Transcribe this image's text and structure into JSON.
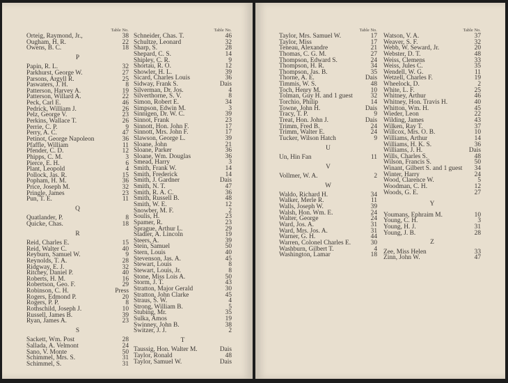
{
  "header_label": "Table No.",
  "columns": [
    {
      "show_header": true,
      "items": [
        {
          "name": "Orteig, Raymond, Jr.,",
          "table": "38"
        },
        {
          "name": "Ougham, H. R.",
          "table": "22"
        },
        {
          "name": "Owens, B. C.",
          "table": "18"
        },
        {
          "letter": "P"
        },
        {
          "name": "Papin, R. L.",
          "table": "32"
        },
        {
          "name": "Parkhurst, George W.",
          "table": "27"
        },
        {
          "name": "Parsons, Argyll R.",
          "table": "25"
        },
        {
          "name": "Paswaters, J. H.",
          "table": "8"
        },
        {
          "name": "Patterson, Harvey A.",
          "table": "19"
        },
        {
          "name": "Patterson, Willard A.",
          "table": "22"
        },
        {
          "name": "Peck, Carl E.",
          "table": "46"
        },
        {
          "name": "Pedrick, William J.",
          "table": "26"
        },
        {
          "name": "Pelz, George V.",
          "table": "23"
        },
        {
          "name": "Perkins, Wallace T.",
          "table": "26"
        },
        {
          "name": "Perrie, C. P.",
          "table": "9"
        },
        {
          "name": "Perry, A. C.",
          "table": "47"
        },
        {
          "name": "Petinot, George Napoleon",
          "table": "36"
        },
        {
          "name": "Pfaffle, William",
          "table": "11"
        },
        {
          "name": "Pfender, C. D.",
          "table": "12"
        },
        {
          "name": "Phipps, C. M.",
          "table": "3"
        },
        {
          "name": "Pierce, E. H.",
          "table": "6"
        },
        {
          "name": "Plant, Leopold",
          "table": "4"
        },
        {
          "name": "Pollock, Jas. R.",
          "table": "15"
        },
        {
          "name": "Popham, H. M.",
          "table": "36"
        },
        {
          "name": "Price, Joseph M.",
          "table": "32"
        },
        {
          "name": "Pringle, James",
          "table": "23"
        },
        {
          "name": "Pun, T. E.",
          "table": "11"
        },
        {
          "letter": "Q"
        },
        {
          "name": "Quatlander, P.",
          "table": "8"
        },
        {
          "name": "Quicke, Chas.",
          "table": "18"
        },
        {
          "letter": "R"
        },
        {
          "name": "Reid, Charles E.",
          "table": "15"
        },
        {
          "name": "Reid, Walter C.",
          "table": "40"
        },
        {
          "name": "Reyburn, Samuel W.",
          "table": "9"
        },
        {
          "name": "Reynolds, T. A.",
          "table": "28"
        },
        {
          "name": "Ridgway, E. J.",
          "table": "32"
        },
        {
          "name": "Ritchey, Daniel P.",
          "table": "40"
        },
        {
          "name": "Roberts, H. M.",
          "table": "16"
        },
        {
          "name": "Robertson, Geo. F.",
          "table": "29"
        },
        {
          "name": "Robinson, C. H.",
          "table": "Press"
        },
        {
          "name": "Rogers, Edmond P.",
          "table": "20"
        },
        {
          "name": "Rogers, P. P.",
          "table": "8"
        },
        {
          "name": "Rothschild, Joseph J.",
          "table": "10"
        },
        {
          "name": "Russell, James B.",
          "table": "39"
        },
        {
          "name": "Ryan, James A.",
          "table": "23"
        },
        {
          "letter": "S"
        },
        {
          "name": "Sackett, Wm. Post",
          "table": "28"
        },
        {
          "name": "Sallada, A. Velmont",
          "table": "24"
        },
        {
          "name": "Sano, V. Monte",
          "table": "50"
        },
        {
          "name": "Schimmel, Mrs. S.",
          "table": "31"
        },
        {
          "name": "Schimmel, S.",
          "table": "31"
        }
      ]
    },
    {
      "show_header": true,
      "items": [
        {
          "name": "Schneider, Chas. T.",
          "table": "46"
        },
        {
          "name": "Schultze, Leonard",
          "table": "32"
        },
        {
          "name": "Sharp, S.",
          "table": "28"
        },
        {
          "name": "Shepard, C. S.",
          "table": "14"
        },
        {
          "name": "Shipley, C. R.",
          "table": "9"
        },
        {
          "name": "Shortau, R. O.",
          "table": "12"
        },
        {
          "name": "Showler, H. L.",
          "table": "39"
        },
        {
          "name": "Sicard, Charles Louis",
          "table": "36"
        },
        {
          "name": "Sidway, Frank S.",
          "table": "Dais"
        },
        {
          "name": "Silverman, Dr. Jos.",
          "table": "4"
        },
        {
          "name": "Silverthorne, S. V.",
          "table": "8"
        },
        {
          "name": "Simon, Robert E.",
          "table": "34"
        },
        {
          "name": "Simpson, Edwin M.",
          "table": "3"
        },
        {
          "name": "Sinnigen, Dr. W. C.",
          "table": "39"
        },
        {
          "name": "Sinnot, Frank",
          "table": "23"
        },
        {
          "name": "Sinnott, Hon. John F.",
          "table": "17"
        },
        {
          "name": "Sinnott, Mrs. John F.",
          "table": "17"
        },
        {
          "name": "Slawson, George L.",
          "table": "39"
        },
        {
          "name": "Sloane, John",
          "table": "21"
        },
        {
          "name": "Sloane, Parker",
          "table": "36"
        },
        {
          "name": "Sloane, Wm. Douglas",
          "table": "36"
        },
        {
          "name": "Smead, Harry",
          "table": "3"
        },
        {
          "name": "Smith, Frank W.",
          "table": "14"
        },
        {
          "name": "Smith, Frederick",
          "table": "14"
        },
        {
          "name": "Smith, J. Gardner",
          "table": "Dais"
        },
        {
          "name": "Smith, N. T.",
          "table": "47"
        },
        {
          "name": "Smith, R. A. C.",
          "table": "36"
        },
        {
          "name": "Smith, Russell B.",
          "table": "48"
        },
        {
          "name": "Smith, W. E.",
          "table": "12"
        },
        {
          "name": "Snowber, M. F.",
          "table": "2"
        },
        {
          "name": "Soulis, H.",
          "table": "23"
        },
        {
          "name": "Spamer, R.",
          "table": "23"
        },
        {
          "name": "Sprague, Arthur L.",
          "table": "29"
        },
        {
          "name": "Stadler, A. Lincoln",
          "table": "19"
        },
        {
          "name": "Steers, A.",
          "table": "39"
        },
        {
          "name": "Stein, Samuel",
          "table": "50"
        },
        {
          "name": "Stern, Louis",
          "table": "40"
        },
        {
          "name": "Stevenson, Jas. A.",
          "table": "45"
        },
        {
          "name": "Stewart, Louis",
          "table": "8"
        },
        {
          "name": "Stewart, Louis, Jr.",
          "table": "8"
        },
        {
          "name": "Stone, Miss Lois A.",
          "table": "50"
        },
        {
          "name": "Storm, J. T.",
          "table": "43"
        },
        {
          "name": "Stratton, Major Gerald",
          "table": "30"
        },
        {
          "name": "Stratton, John Clarke",
          "table": "45"
        },
        {
          "name": "Straus, S. W.",
          "table": "4"
        },
        {
          "name": "Strong, William B.",
          "table": "5"
        },
        {
          "name": "Stubing, Mr.",
          "table": "35"
        },
        {
          "name": "Sulka, Amos",
          "table": "19"
        },
        {
          "name": "Swinney, John B.",
          "table": "38"
        },
        {
          "name": "Switzer, J. J.",
          "table": "2"
        },
        {
          "letter": "T"
        },
        {
          "name": "Taussig, Hon. Walter M.",
          "table": "Dais"
        },
        {
          "name": "Taylor, Ronald",
          "table": "48"
        },
        {
          "name": "Taylor, Samuel W.",
          "table": "Dais"
        }
      ]
    },
    {
      "show_header": true,
      "items": [
        {
          "name": "Taylor, Mrs. Samuel W.",
          "table": "17"
        },
        {
          "name": "Taylor, Miss",
          "table": "17"
        },
        {
          "name": "Teneau, Alexandre",
          "table": "21"
        },
        {
          "name": "Thomas, C. G. M.",
          "table": "27"
        },
        {
          "name": "Thompson, Edward S.",
          "table": "24"
        },
        {
          "name": "Thompson, H. R.",
          "table": "34"
        },
        {
          "name": "Thompson, Jas. B.",
          "table": "35"
        },
        {
          "name": "Thorne, A. E.",
          "table": "Dais"
        },
        {
          "name": "Timmis, W. S.",
          "table": "48"
        },
        {
          "name": "Toch, Henry M.",
          "table": "10"
        },
        {
          "name": "Tolman, Guy H. and 1 guest",
          "table": "32"
        },
        {
          "name": "Torchio, Philip",
          "table": "14"
        },
        {
          "name": "Towne, John H.",
          "table": "Dais"
        },
        {
          "name": "Tracy, T. P.",
          "table": "9"
        },
        {
          "name": "Treat, Hon. John J.",
          "table": "Dais"
        },
        {
          "name": "Trimm, Fred B.",
          "table": "24"
        },
        {
          "name": "Trimm, Walter E.",
          "table": "24"
        },
        {
          "name": "Tucker, Wilson Hatch",
          "table": "9"
        },
        {
          "letter": "U"
        },
        {
          "name": "Un, Hin Fan",
          "table": "11"
        },
        {
          "letter": "V"
        },
        {
          "name": "Vollmer, W. A.",
          "table": "2"
        },
        {
          "letter": "W"
        },
        {
          "name": "Waldo, Richard H.",
          "table": "34"
        },
        {
          "name": "Walker, Merle R.",
          "table": "11"
        },
        {
          "name": "Walls, Joseph W.",
          "table": "39"
        },
        {
          "name": "Walsh, Hon. Wm. E.",
          "table": "24"
        },
        {
          "name": "Walter, George",
          "table": "24"
        },
        {
          "name": "Ward, Jos. A.",
          "table": "31"
        },
        {
          "name": "Ward, Mrs. Jos. A.",
          "table": "31"
        },
        {
          "name": "Warner, G. H.",
          "table": "44"
        },
        {
          "name": "Warren, Colonel Charles E.",
          "table": "30"
        },
        {
          "name": "Washburn, Gilbert T.",
          "table": "4"
        },
        {
          "name": "Washington, Lamar",
          "table": "18"
        }
      ]
    },
    {
      "show_header": true,
      "items": [
        {
          "name": "Watson, V. A.",
          "table": "37"
        },
        {
          "name": "Weaver, S. F.",
          "table": "32"
        },
        {
          "name": "Webb, W. Seward, Jr.",
          "table": "20"
        },
        {
          "name": "Webster, D. T.",
          "table": "48"
        },
        {
          "name": "Weiss, Clemens",
          "table": "33"
        },
        {
          "name": "Weiss, Jules C.",
          "table": "35"
        },
        {
          "name": "Wendell, W. G.",
          "table": "11"
        },
        {
          "name": "Wetzell, Charles F.",
          "table": "19"
        },
        {
          "name": "Wheelock, D.",
          "table": "2"
        },
        {
          "name": "White, L. F.",
          "table": "25"
        },
        {
          "name": "Whitney, Arthur",
          "table": "46"
        },
        {
          "name": "Whitney, Hon. Travis H.",
          "table": "40"
        },
        {
          "name": "Whitton, Wm. H.",
          "table": "45"
        },
        {
          "name": "Wieder, Leon",
          "table": "22"
        },
        {
          "name": "Wilding, James",
          "table": "43"
        },
        {
          "name": "Wilken, Ray T.",
          "table": "37"
        },
        {
          "name": "Willcox, Mrs. O. B.",
          "table": "10"
        },
        {
          "name": "Williams, Arthur",
          "table": "14"
        },
        {
          "name": "Williams, H. K. S.",
          "table": "36"
        },
        {
          "name": "Williams, J. H.",
          "table": "Dais"
        },
        {
          "name": "Wills, Charles S.",
          "table": "48"
        },
        {
          "name": "Wilson, Francis S.",
          "table": "50"
        },
        {
          "name": "Winant, Gilbert S. and 1 guest",
          "table": "34"
        },
        {
          "name": "Winter, Harry",
          "table": "24"
        },
        {
          "name": "Wood, Clarence W.",
          "table": "5"
        },
        {
          "name": "Woodman, C. H.",
          "table": "12"
        },
        {
          "name": "Woods, G. E.",
          "table": "27"
        },
        {
          "letter": "Y"
        },
        {
          "name": "Youmans, Ephraim M.",
          "table": "10"
        },
        {
          "name": "Young, C. H.",
          "table": "3"
        },
        {
          "name": "Young, H. J.",
          "table": "31"
        },
        {
          "name": "Young, J. B.",
          "table": "28"
        },
        {
          "letter": "Z"
        },
        {
          "name": "Zee, Miss Helen",
          "table": "33"
        },
        {
          "name": "Zinn, John W.",
          "table": "47"
        }
      ]
    }
  ]
}
